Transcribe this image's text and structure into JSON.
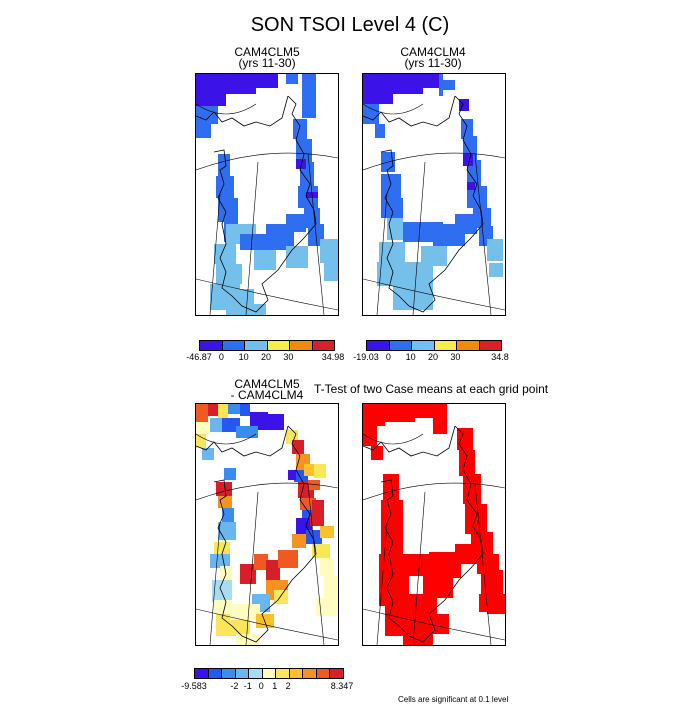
{
  "title": "SON TSOI Level 4 (C)",
  "panels": {
    "top_left": {
      "title_line1": "CAM4CLM5",
      "title_line2": "(yrs 11-30)"
    },
    "top_right": {
      "title_line1": "CAM4CLM4",
      "title_line2": "(yrs 11-30)"
    },
    "bottom_left": {
      "title_line1": "CAM4CLM5",
      "title_line2": "- CAM4CLM4"
    },
    "bottom_right": {
      "title": "T-Test of two Case means at each grid point"
    }
  },
  "colorbars": {
    "top_left": {
      "colors": [
        "#3b12e8",
        "#2f6ef0",
        "#74c0ea",
        "#f6ee4c",
        "#f58a0a",
        "#d8202a"
      ],
      "labels": [
        "-46.87",
        "0",
        "10",
        "20",
        "30",
        "34.98"
      ]
    },
    "top_right": {
      "colors": [
        "#3b12e8",
        "#2f6ef0",
        "#74c0ea",
        "#f6ee4c",
        "#f58a0a",
        "#d8202a"
      ],
      "labels": [
        "-19.03",
        "0",
        "10",
        "20",
        "30",
        "34.8"
      ]
    },
    "bottom_left": {
      "colors": [
        "#3b12e8",
        "#2458f0",
        "#3a8cf0",
        "#6cb6f0",
        "#a8dcf2",
        "#fffcc0",
        "#f9e65a",
        "#f9c22a",
        "#f59220",
        "#ef5a22",
        "#d81e28"
      ],
      "labels": [
        "-9.583",
        "-2",
        "-1",
        "0",
        "1",
        "2",
        "8.347"
      ]
    }
  },
  "footnote": "Cells are significant at 0.1 level",
  "colors": {
    "deep_blue": "#3b12e8",
    "blue": "#2f6ef0",
    "light_blue": "#74c0ea",
    "significant_red": "#ff0000"
  }
}
